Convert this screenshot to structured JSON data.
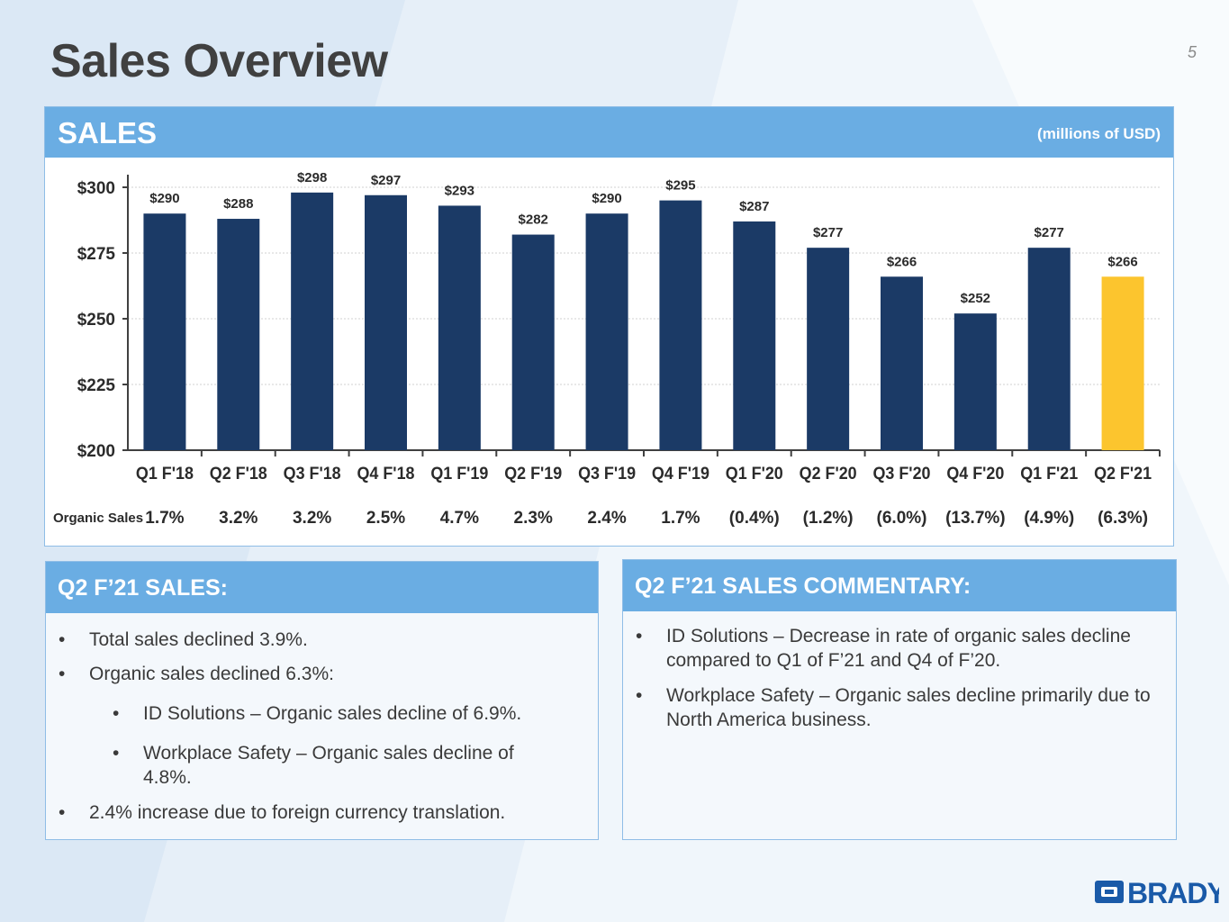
{
  "page": {
    "title": "Sales Overview",
    "page_number": "5"
  },
  "sales_panel": {
    "header": "SALES",
    "units": "(millions of USD)"
  },
  "chart_data": {
    "type": "bar",
    "categories": [
      "Q1 F'18",
      "Q2 F'18",
      "Q3 F'18",
      "Q4 F'18",
      "Q1 F'19",
      "Q2 F'19",
      "Q3 F'19",
      "Q4 F'19",
      "Q1 F'20",
      "Q2 F'20",
      "Q3 F'20",
      "Q4 F'20",
      "Q1 F'21",
      "Q2 F'21"
    ],
    "values": [
      290,
      288,
      298,
      297,
      293,
      282,
      290,
      295,
      287,
      277,
      266,
      252,
      277,
      266
    ],
    "value_labels": [
      "$290",
      "$288",
      "$298",
      "$297",
      "$293",
      "$282",
      "$290",
      "$295",
      "$287",
      "$277",
      "$266",
      "$252",
      "$277",
      "$266"
    ],
    "ylim": [
      200,
      300
    ],
    "yticks": [
      200,
      225,
      250,
      275,
      300
    ],
    "ytick_labels": [
      "$200",
      "$225",
      "$250",
      "$275",
      "$300"
    ],
    "grid": true,
    "colors": {
      "bar": "#1b3a66",
      "highlight": "#fcc52e"
    },
    "highlight_index": 13,
    "row_label": "Organic Sales",
    "organic_sales": [
      "1.7%",
      "3.2%",
      "3.2%",
      "2.5%",
      "4.7%",
      "2.3%",
      "2.4%",
      "1.7%",
      "(0.4%)",
      "(1.2%)",
      "(6.0%)",
      "(13.7%)",
      "(4.9%)",
      "(6.3%)"
    ]
  },
  "left_box": {
    "header": "Q2 F’21 SALES:",
    "bullets": [
      "Total sales declined 3.9%.",
      "Organic sales declined 6.3%:",
      "ID Solutions – Organic sales decline of 6.9%.",
      "Workplace Safety – Organic sales decline of 4.8%.",
      "2.4% increase due to foreign currency translation."
    ]
  },
  "right_box": {
    "header": "Q2 F’21 SALES COMMENTARY:",
    "bullets": [
      "ID Solutions – Decrease in rate of organic sales decline compared to Q1 of F’21 and Q4 of F’20.",
      "Workplace Safety – Organic sales decline primarily due to North America business."
    ]
  },
  "logo": {
    "text": "BRADY",
    "color": "#1a5aa8"
  }
}
